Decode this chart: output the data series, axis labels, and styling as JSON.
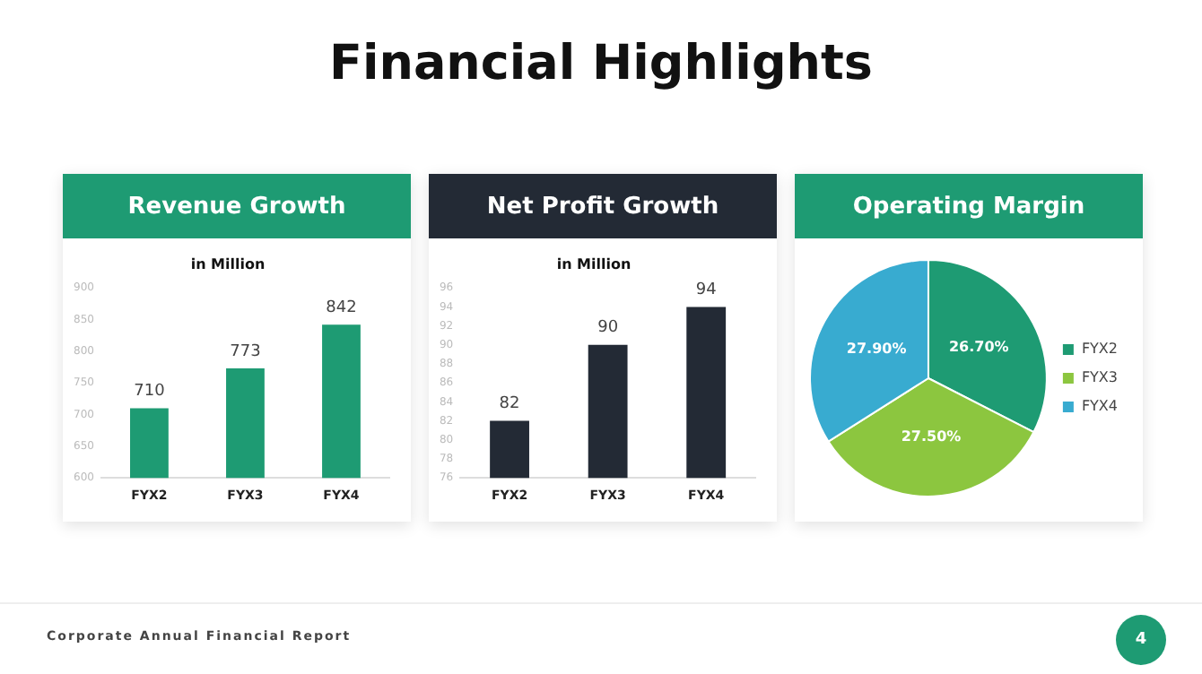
{
  "chart_data": [
    {
      "type": "other",
      "title": "Financial Highlights",
      "annotations": [
        "Corporate Annual Financial Report",
        "4"
      ]
    },
    {
      "type": "bar",
      "title": "Revenue Growth",
      "subtitle": "in Million",
      "categories": [
        "FYX2",
        "FYX3",
        "FYX4"
      ],
      "values": [
        710,
        773,
        842
      ],
      "color": "#1e9b73",
      "ylim": [
        600,
        900
      ],
      "yticks": [
        600,
        650,
        700,
        750,
        800,
        850,
        900
      ],
      "grid": false,
      "data_labels": true
    },
    {
      "type": "bar",
      "title": "Net Profit Growth",
      "subtitle": "in Million",
      "categories": [
        "FYX2",
        "FYX3",
        "FYX4"
      ],
      "values": [
        82,
        90,
        94
      ],
      "color": "#232a35",
      "ylim": [
        76,
        96
      ],
      "yticks": [
        76,
        78,
        80,
        82,
        84,
        86,
        88,
        90,
        92,
        94,
        96
      ],
      "grid": false,
      "data_labels": true
    },
    {
      "type": "pie",
      "title": "Operating Margin",
      "categories": [
        "FYX2",
        "FYX3",
        "FYX4"
      ],
      "values": [
        26.7,
        27.5,
        27.9
      ],
      "colors": [
        "#1e9b73",
        "#8cc63f",
        "#38abd0"
      ],
      "value_labels": [
        "26.70%",
        "27.50%",
        "27.90%"
      ],
      "legend": "right"
    }
  ]
}
